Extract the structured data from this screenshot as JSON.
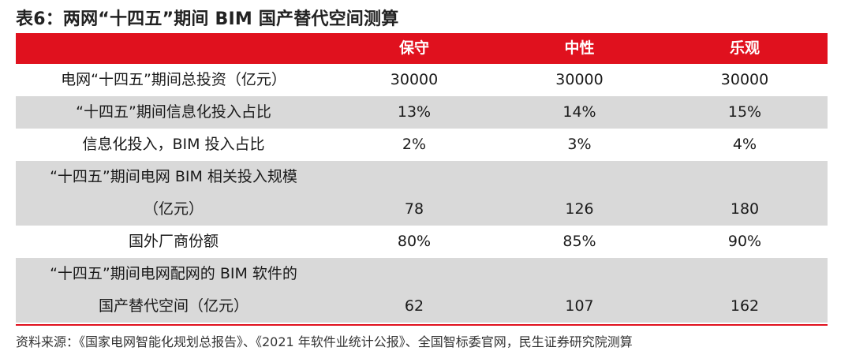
{
  "title": "表6：两网“十四五”期间 BIM 国产替代空间测算",
  "table": {
    "headers": [
      "",
      "保守",
      "中性",
      "乐观"
    ],
    "rows": [
      {
        "label": [
          "电网“十四五”期间总投资（亿元）"
        ],
        "values": [
          "30000",
          "30000",
          "30000"
        ]
      },
      {
        "label": [
          "“十四五”期间信息化投入占比"
        ],
        "values": [
          "13%",
          "14%",
          "15%"
        ]
      },
      {
        "label": [
          "信息化投入，BIM 投入占比"
        ],
        "values": [
          "2%",
          "3%",
          "4%"
        ]
      },
      {
        "label": [
          "“十四五”期间电网 BIM 相关投入规模",
          "（亿元）"
        ],
        "values": [
          "78",
          "126",
          "180"
        ]
      },
      {
        "label": [
          "国外厂商份额"
        ],
        "values": [
          "80%",
          "85%",
          "90%"
        ]
      },
      {
        "label": [
          "“十四五”期间电网配网的 BIM 软件的",
          "国产替代空间（亿元）"
        ],
        "values": [
          "62",
          "107",
          "162"
        ]
      }
    ]
  },
  "source": "资料来源：《国家电网智能化规划总报告》、《2021 年软件业统计公报》、全国智标委官网，民生证券研究院测算",
  "colors": {
    "header_bg": "#e0111e",
    "stripe_bg": "#d9d9d9",
    "header_text": "#ffffff"
  }
}
